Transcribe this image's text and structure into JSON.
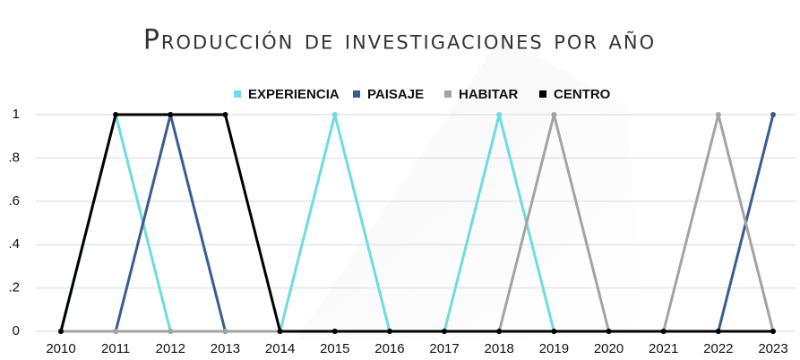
{
  "chart_data": {
    "type": "line",
    "title": "Producción de investigaciones por año",
    "categories": [
      "2010",
      "2011",
      "2012",
      "2013",
      "2014",
      "2015",
      "2016",
      "2017",
      "2018",
      "2019",
      "2020",
      "2021",
      "2022",
      "2023"
    ],
    "series": [
      {
        "name": "EXPERIENCIA",
        "color": "#6fdbe2",
        "values": [
          0,
          1,
          0,
          0,
          0,
          1,
          0,
          0,
          1,
          0,
          0,
          0,
          0,
          0
        ]
      },
      {
        "name": "PAISAJE",
        "color": "#3a5d8e",
        "values": [
          0,
          0,
          1,
          0,
          0,
          0,
          0,
          0,
          0,
          0,
          0,
          0,
          0,
          1
        ]
      },
      {
        "name": "HABITAR",
        "color": "#a3a3a3",
        "values": [
          0,
          0,
          0,
          0,
          0,
          0,
          0,
          0,
          0,
          1,
          0,
          0,
          1,
          0
        ]
      },
      {
        "name": "CENTRO",
        "color": "#000000",
        "values": [
          0,
          1,
          1,
          1,
          0,
          0,
          0,
          0,
          0,
          0,
          0,
          0,
          0,
          0
        ]
      }
    ],
    "ylim": [
      0,
      1
    ],
    "yticks": [
      0,
      {
        "value": 0.2,
        "label": ".2"
      },
      {
        "value": 0.4,
        "label": ".4"
      },
      {
        "value": 0.6,
        "label": ".6"
      },
      {
        "value": 0.8,
        "label": ".8"
      },
      1
    ],
    "grid": true,
    "legend": "top"
  }
}
